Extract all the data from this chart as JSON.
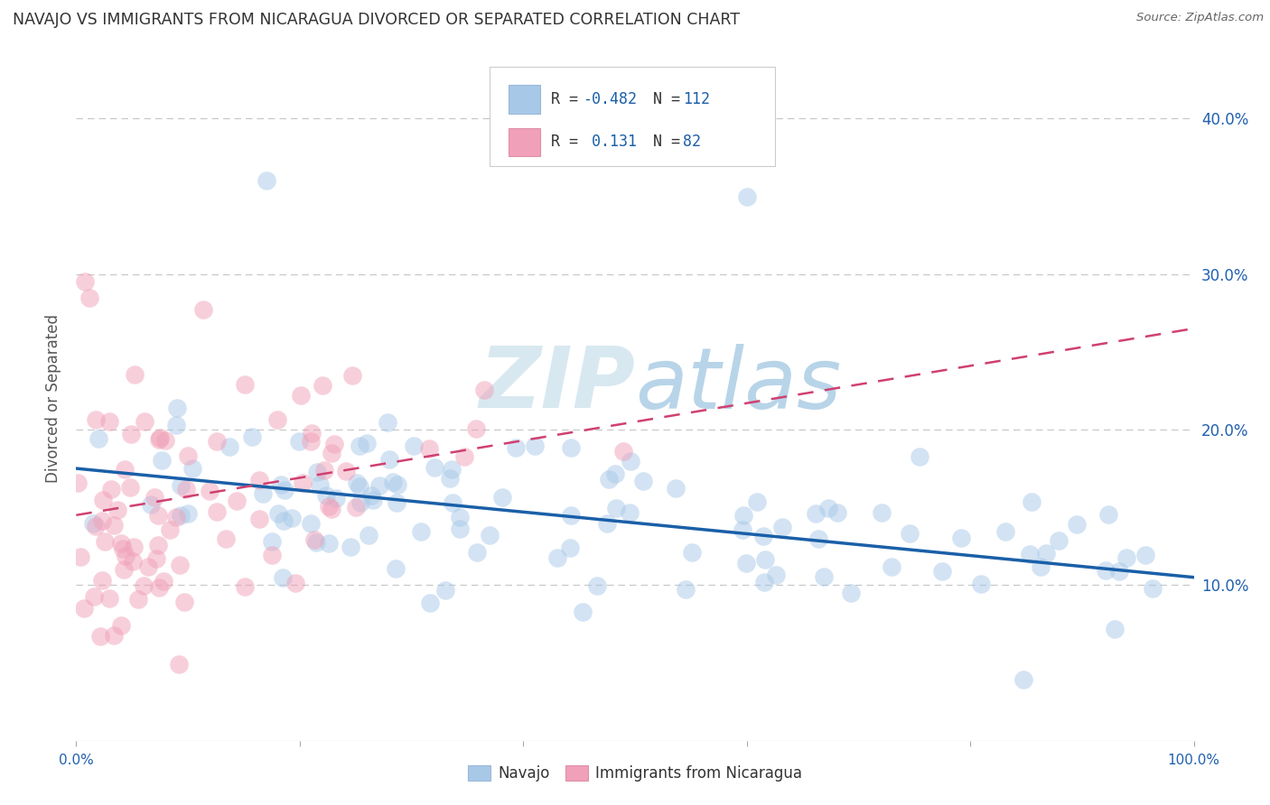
{
  "title": "NAVAJO VS IMMIGRANTS FROM NICARAGUA DIVORCED OR SEPARATED CORRELATION CHART",
  "source": "Source: ZipAtlas.com",
  "ylabel": "Divorced or Separated",
  "xlim": [
    0.0,
    1.0
  ],
  "ylim": [
    0.0,
    0.44
  ],
  "xticks": [
    0.0,
    0.2,
    0.4,
    0.6,
    0.8,
    1.0
  ],
  "yticks": [
    0.1,
    0.2,
    0.3,
    0.4
  ],
  "ytick_labels": [
    "10.0%",
    "20.0%",
    "30.0%",
    "40.0%"
  ],
  "xtick_labels": [
    "0.0%",
    "",
    "",
    "",
    "",
    "100.0%"
  ],
  "grid_color": "#c8c8c8",
  "background_color": "#ffffff",
  "navajo_color": "#a8c8e8",
  "nicaragua_color": "#f0a0b8",
  "navajo_R": -0.482,
  "navajo_N": 112,
  "nicaragua_R": 0.131,
  "nicaragua_N": 82,
  "navajo_line_color": "#1a5fa8",
  "nicaragua_line_color": "#d04070",
  "tick_color": "#2060b0",
  "watermark_color": "#d8e8f0",
  "legend_label_navajo": "Navajo",
  "legend_label_nicaragua": "Immigrants from Nicaragua"
}
